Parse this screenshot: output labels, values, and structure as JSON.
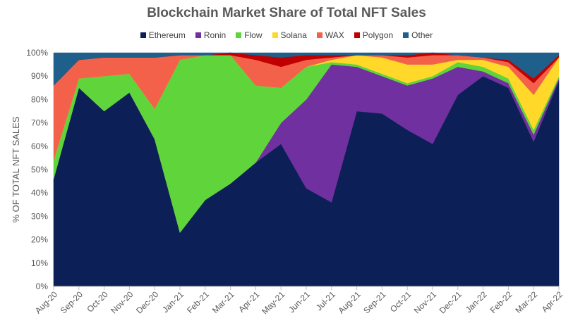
{
  "chart_data": {
    "type": "area",
    "stacked": true,
    "normalized": true,
    "title": "Blockchain Market Share of Total NFT Sales",
    "ylabel": "% OF TOTAL NFT SALES",
    "xlabel": "",
    "ylim": [
      0,
      100
    ],
    "yticks": [
      "0%",
      "10%",
      "20%",
      "30%",
      "40%",
      "50%",
      "60%",
      "70%",
      "80%",
      "90%",
      "100%"
    ],
    "legend_position": "top",
    "categories": [
      "Aug-20",
      "Sep-20",
      "Oct-20",
      "Nov-20",
      "Dec-20",
      "Jan-21",
      "Feb-21",
      "Mar-21",
      "Apr-21",
      "May-21",
      "Jun-21",
      "Jul-21",
      "Aug-21",
      "Sep-21",
      "Oct-21",
      "Nov-21",
      "Dec-21",
      "Jan-22",
      "Feb-22",
      "Mar-22",
      "Apr-22"
    ],
    "series": [
      {
        "name": "Ethereum",
        "color": "#0c1f56",
        "values": [
          46,
          85,
          75,
          83,
          63,
          23,
          37,
          44,
          53,
          61,
          42,
          36,
          75,
          74,
          67,
          61,
          82,
          90,
          85,
          62,
          88
        ]
      },
      {
        "name": "Ronin",
        "color": "#7030a0",
        "values": [
          0,
          0,
          0,
          0,
          0,
          0,
          0,
          0,
          0,
          9,
          38,
          59,
          19,
          16,
          19,
          28,
          12,
          2,
          2,
          3,
          1
        ]
      },
      {
        "name": "Flow",
        "color": "#5fd43b",
        "values": [
          8,
          4,
          15,
          8,
          13,
          74,
          62,
          55,
          33,
          15,
          14,
          1,
          1,
          1,
          1,
          1,
          2,
          2,
          2,
          2,
          1
        ]
      },
      {
        "name": "Solana",
        "color": "#ffd829",
        "values": [
          0,
          0,
          0,
          0,
          0,
          0,
          0,
          0,
          0,
          0,
          0,
          1,
          4,
          7,
          8,
          5,
          1,
          3,
          5,
          15,
          8
        ]
      },
      {
        "name": "WAX",
        "color": "#f4614a",
        "values": [
          32,
          8,
          8,
          7,
          22,
          2,
          0,
          0,
          11,
          9,
          3,
          1,
          0,
          1,
          3,
          4,
          2,
          1,
          2,
          5,
          0
        ]
      },
      {
        "name": "Polygon",
        "color": "#c00000",
        "values": [
          0,
          0,
          0,
          0,
          0,
          0,
          0,
          1,
          2,
          4,
          2,
          1,
          0,
          0,
          1,
          1,
          0,
          0,
          1,
          2,
          1
        ]
      },
      {
        "name": "Other",
        "color": "#1f5f8b",
        "values": [
          14,
          3,
          2,
          2,
          2,
          1,
          1,
          0,
          1,
          2,
          1,
          1,
          1,
          1,
          1,
          0,
          1,
          2,
          3,
          11,
          1
        ]
      }
    ]
  }
}
